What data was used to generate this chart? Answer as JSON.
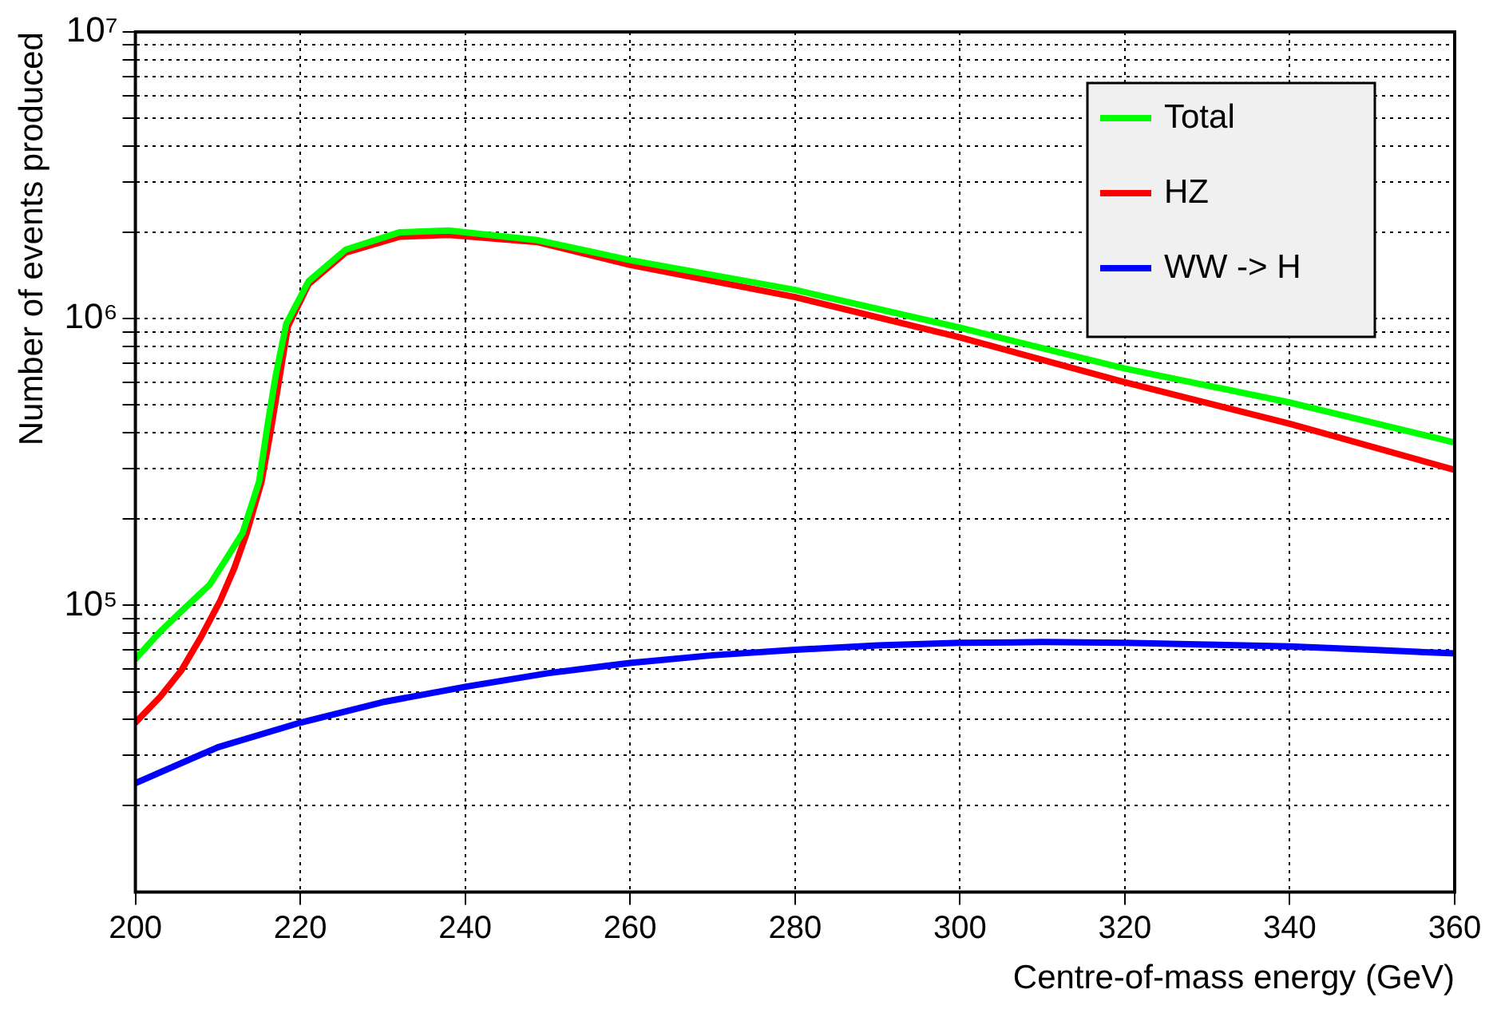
{
  "chart_data": {
    "type": "line",
    "xlabel": "Centre-of-mass energy (GeV)",
    "ylabel": "Number of events produced",
    "series": [
      {
        "name": "Total",
        "color": "#00ff00",
        "x": [
          200,
          203,
          206,
          209,
          211,
          213,
          215,
          216,
          217,
          218.3,
          221,
          225.5,
          232,
          238,
          248.7,
          260,
          280,
          300,
          320,
          340,
          360
        ],
        "values": [
          65000,
          81000,
          98000,
          118000,
          145000,
          179000,
          270000,
          420000,
          630000,
          960000,
          1350000,
          1740000,
          2000000,
          2030000,
          1880000,
          1600000,
          1260000,
          930000,
          670000,
          510000,
          370000
        ]
      },
      {
        "name": "HZ",
        "color": "#ff0000",
        "x": [
          200,
          203,
          205.6,
          208,
          210.3,
          212,
          213.5,
          215.3,
          216.5,
          217.5,
          218.5,
          221,
          225.5,
          232,
          238,
          248.7,
          260,
          280,
          300,
          320,
          340,
          360
        ],
        "values": [
          39000,
          48000,
          59500,
          78000,
          104000,
          135000,
          179000,
          270000,
          420000,
          630000,
          940000,
          1320000,
          1700000,
          1930000,
          1960000,
          1850000,
          1540000,
          1190000,
          860000,
          600000,
          430000,
          297000
        ]
      },
      {
        "name": "WW -> H",
        "color": "#0000ff",
        "x": [
          200,
          210,
          220,
          230,
          240,
          250,
          260,
          270,
          280,
          290,
          300,
          310,
          320,
          330,
          340,
          350,
          360
        ],
        "values": [
          24000,
          32000,
          39000,
          46000,
          52000,
          58000,
          63000,
          67000,
          70000,
          72500,
          74000,
          74500,
          74000,
          73000,
          72000,
          70000,
          68000
        ]
      }
    ],
    "xlim": [
      200,
      360
    ],
    "xticks": [
      200,
      220,
      240,
      260,
      280,
      300,
      320,
      340,
      360
    ],
    "ylim": [
      10000,
      10000000
    ],
    "log": "y",
    "yticks": [
      {
        "value": 20000,
        "label": null
      },
      {
        "value": 30000,
        "label": null
      },
      {
        "value": 40000,
        "label": null
      },
      {
        "value": 50000,
        "label": null
      },
      {
        "value": 60000,
        "label": null
      },
      {
        "value": 70000,
        "label": null
      },
      {
        "value": 80000,
        "label": null
      },
      {
        "value": 90000,
        "label": null
      },
      {
        "value": 100000,
        "label": "10⁵"
      },
      {
        "value": 200000,
        "label": null
      },
      {
        "value": 300000,
        "label": null
      },
      {
        "value": 400000,
        "label": null
      },
      {
        "value": 500000,
        "label": null
      },
      {
        "value": 600000,
        "label": null
      },
      {
        "value": 700000,
        "label": null
      },
      {
        "value": 800000,
        "label": null
      },
      {
        "value": 900000,
        "label": null
      },
      {
        "value": 1000000,
        "label": "10⁶"
      },
      {
        "value": 2000000,
        "label": null
      },
      {
        "value": 3000000,
        "label": null
      },
      {
        "value": 4000000,
        "label": null
      },
      {
        "value": 5000000,
        "label": null
      },
      {
        "value": 6000000,
        "label": null
      },
      {
        "value": 7000000,
        "label": null
      },
      {
        "value": 8000000,
        "label": null
      },
      {
        "value": 9000000,
        "label": null
      },
      {
        "value": 10000000,
        "label": "10⁷"
      }
    ],
    "grid": true,
    "legend": "top right",
    "marker": "none",
    "line_style": "solid"
  }
}
